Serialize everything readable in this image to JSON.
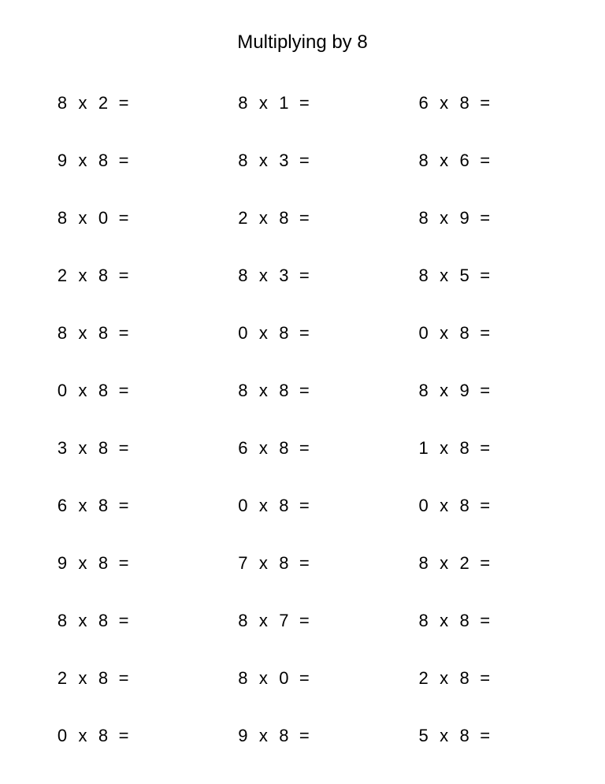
{
  "title": "Multiplying by 8",
  "operator": "x",
  "equals": "=",
  "problems": [
    {
      "a": "8",
      "b": "2"
    },
    {
      "a": "8",
      "b": "1"
    },
    {
      "a": "6",
      "b": "8"
    },
    {
      "a": "9",
      "b": "8"
    },
    {
      "a": "8",
      "b": "3"
    },
    {
      "a": "8",
      "b": "6"
    },
    {
      "a": "8",
      "b": "0"
    },
    {
      "a": "2",
      "b": "8"
    },
    {
      "a": "8",
      "b": "9"
    },
    {
      "a": "2",
      "b": "8"
    },
    {
      "a": "8",
      "b": "3"
    },
    {
      "a": "8",
      "b": "5"
    },
    {
      "a": "8",
      "b": "8"
    },
    {
      "a": "0",
      "b": "8"
    },
    {
      "a": "0",
      "b": "8"
    },
    {
      "a": "0",
      "b": "8"
    },
    {
      "a": "8",
      "b": "8"
    },
    {
      "a": "8",
      "b": "9"
    },
    {
      "a": "3",
      "b": "8"
    },
    {
      "a": "6",
      "b": "8"
    },
    {
      "a": "1",
      "b": "8"
    },
    {
      "a": "6",
      "b": "8"
    },
    {
      "a": "0",
      "b": "8"
    },
    {
      "a": "0",
      "b": "8"
    },
    {
      "a": "9",
      "b": "8"
    },
    {
      "a": "7",
      "b": "8"
    },
    {
      "a": "8",
      "b": "2"
    },
    {
      "a": "8",
      "b": "8"
    },
    {
      "a": "8",
      "b": "7"
    },
    {
      "a": "8",
      "b": "8"
    },
    {
      "a": "2",
      "b": "8"
    },
    {
      "a": "8",
      "b": "0"
    },
    {
      "a": "2",
      "b": "8"
    },
    {
      "a": "0",
      "b": "8"
    },
    {
      "a": "9",
      "b": "8"
    },
    {
      "a": "5",
      "b": "8"
    }
  ]
}
